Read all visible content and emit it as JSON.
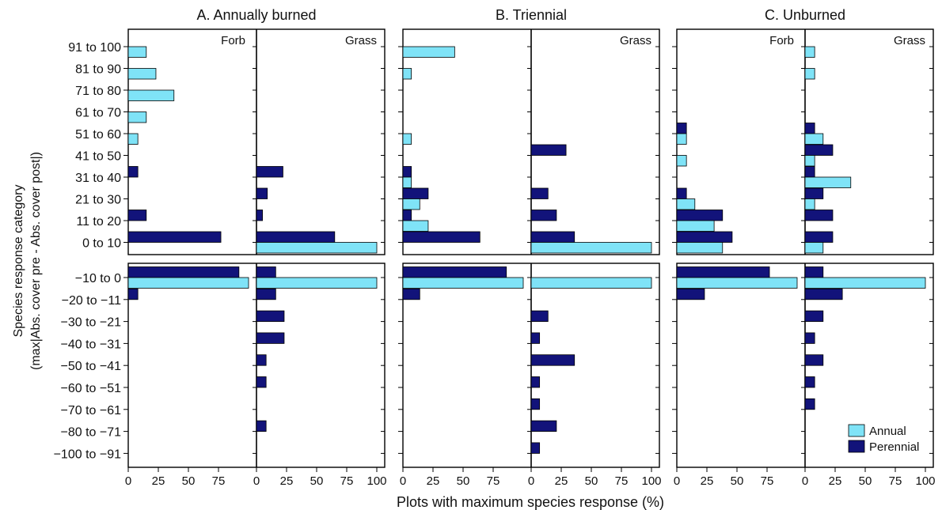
{
  "chart_data": {
    "type": "bar",
    "orientation": "horizontal",
    "ylabel_lines": [
      "Species response category",
      "(max|Abs. cover pre - Abs. cover post|)"
    ],
    "xlabel": "Plots with maximum species response (%)",
    "xlim": [
      0,
      100
    ],
    "forb_xticks": [
      "0",
      "25",
      "50",
      "75"
    ],
    "grass_xticks": [
      "0",
      "25",
      "50",
      "75",
      "100"
    ],
    "categories_top": [
      "91 to 100",
      "81 to 90",
      "71 to 80",
      "61 to 70",
      "51 to 60",
      "41 to 50",
      "31 to 40",
      "21 to 30",
      "11 to 20",
      "0 to 10"
    ],
    "categories_bottom": [
      "−10 to 0",
      "−20 to −11",
      "−30 to −21",
      "−40 to −31",
      "−50 to −41",
      "−60 to −51",
      "−70 to −61",
      "−80 to −71",
      "−100 to −91"
    ],
    "legend": [
      {
        "name": "Annual",
        "color": "#7fe3f7"
      },
      {
        "name": "Perennial",
        "color": "#12137a"
      }
    ],
    "legend_position": "bottom-right",
    "colors": {
      "annual": "#7fe3f7",
      "perennial": "#12137a"
    },
    "panels": [
      {
        "title": "A. Annually burned",
        "forb_label": "Forb",
        "grass_label": "Grass",
        "forb": {
          "top": {
            "annual": [
              15,
              23,
              38,
              15,
              8,
              0,
              0,
              0,
              0,
              0
            ],
            "perennial": [
              0,
              0,
              0,
              0,
              0,
              0,
              8,
              0,
              15,
              77
            ]
          },
          "bottom": {
            "annual": [
              100,
              0,
              0,
              0,
              0,
              0,
              0,
              0,
              0
            ],
            "perennial": [
              92,
              8,
              0,
              0,
              0,
              0,
              0,
              0,
              0
            ]
          }
        },
        "grass": {
          "top": {
            "annual": [
              0,
              0,
              0,
              0,
              0,
              0,
              0,
              0,
              0,
              100
            ],
            "perennial": [
              0,
              0,
              0,
              0,
              0,
              0,
              22,
              9,
              5,
              65
            ]
          },
          "bottom": {
            "annual": [
              100,
              0,
              0,
              0,
              0,
              0,
              0,
              0,
              0
            ],
            "perennial": [
              16,
              16,
              23,
              23,
              8,
              8,
              0,
              8,
              0
            ]
          }
        }
      },
      {
        "title": "B. Triennial",
        "forb_label": "",
        "grass_label": "Grass",
        "forb": {
          "top": {
            "annual": [
              43,
              7,
              0,
              0,
              7,
              0,
              7,
              14,
              21,
              0
            ],
            "perennial": [
              0,
              0,
              0,
              0,
              0,
              0,
              7,
              21,
              7,
              64
            ]
          },
          "bottom": {
            "annual": [
              100,
              0,
              0,
              0,
              0,
              0,
              0,
              0,
              0
            ],
            "perennial": [
              86,
              14,
              0,
              0,
              0,
              0,
              0,
              0,
              0
            ]
          }
        },
        "grass": {
          "top": {
            "annual": [
              0,
              0,
              0,
              0,
              0,
              0,
              0,
              0,
              0,
              100
            ],
            "perennial": [
              0,
              0,
              0,
              0,
              0,
              29,
              0,
              14,
              21,
              36
            ]
          },
          "bottom": {
            "annual": [
              100,
              0,
              0,
              0,
              0,
              0,
              0,
              0,
              0
            ],
            "perennial": [
              0,
              0,
              14,
              7,
              36,
              7,
              7,
              21,
              7
            ]
          }
        }
      },
      {
        "title": "C. Unburned",
        "forb_label": "Forb",
        "grass_label": "Grass",
        "forb": {
          "top": {
            "annual": [
              0,
              0,
              0,
              0,
              8,
              8,
              0,
              15,
              31,
              38
            ],
            "perennial": [
              0,
              0,
              0,
              0,
              8,
              0,
              0,
              8,
              38,
              46
            ]
          },
          "bottom": {
            "annual": [
              100,
              0,
              0,
              0,
              0,
              0,
              0,
              0,
              0
            ],
            "perennial": [
              77,
              23,
              0,
              0,
              0,
              0,
              0,
              0,
              0
            ]
          }
        },
        "grass": {
          "top": {
            "annual": [
              8,
              8,
              0,
              0,
              15,
              8,
              38,
              8,
              0,
              15
            ],
            "perennial": [
              0,
              0,
              0,
              0,
              8,
              23,
              8,
              15,
              23,
              23
            ]
          },
          "bottom": {
            "annual": [
              100,
              0,
              0,
              0,
              0,
              0,
              0,
              0,
              0
            ],
            "perennial": [
              15,
              31,
              15,
              8,
              15,
              8,
              8,
              0,
              0
            ]
          }
        }
      }
    ]
  }
}
